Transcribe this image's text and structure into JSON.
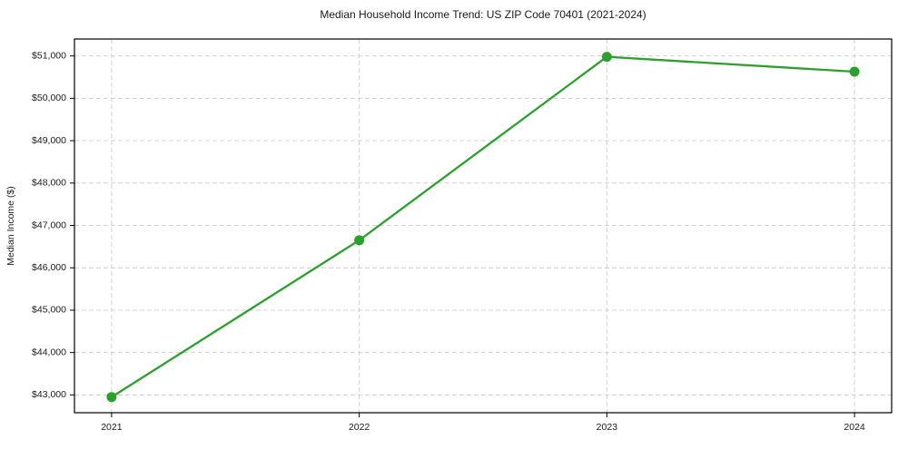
{
  "chart_data": {
    "type": "line",
    "title": "Median Household Income Trend: US ZIP Code 70401 (2021-2024)",
    "xlabel": "",
    "ylabel": "Median Income ($)",
    "x": [
      2021,
      2022,
      2023,
      2024
    ],
    "values": [
      42950,
      46650,
      50980,
      50630
    ],
    "xlim": [
      2020.85,
      2024.15
    ],
    "ylim": [
      42580,
      51400
    ],
    "xticks": [
      2021,
      2022,
      2023,
      2024
    ],
    "xtick_labels": [
      "2021",
      "2022",
      "2023",
      "2024"
    ],
    "yticks": [
      43000,
      44000,
      45000,
      46000,
      47000,
      48000,
      49000,
      50000,
      51000
    ],
    "ytick_labels": [
      "$43,000",
      "$44,000",
      "$45,000",
      "$46,000",
      "$47,000",
      "$48,000",
      "$49,000",
      "$50,000",
      "$51,000"
    ],
    "grid": true,
    "legend": false,
    "line_color": "#2ca02c",
    "marker": "circle",
    "grid_color": "#cccccc",
    "spine_color": "#000000",
    "background_color": "#ffffff"
  }
}
